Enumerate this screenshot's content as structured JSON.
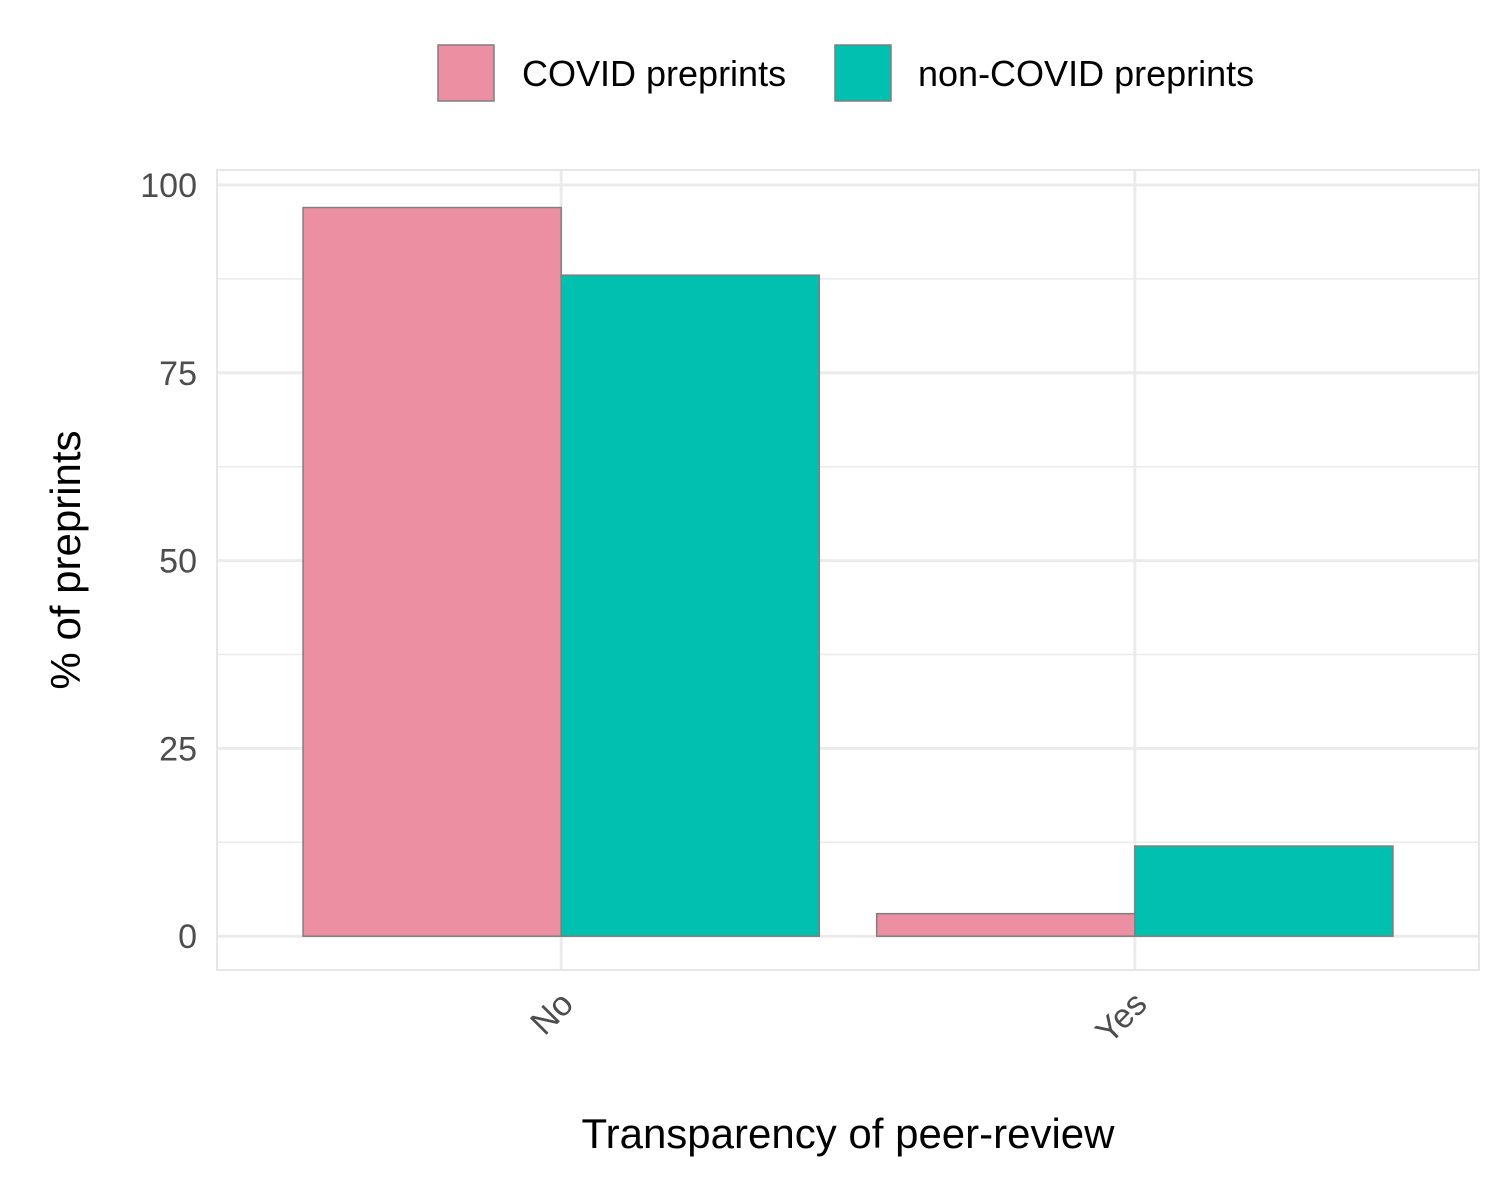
{
  "chart_data": {
    "type": "bar",
    "xlabel": "Transparency of peer-review",
    "ylabel": "% of preprints",
    "categories": [
      "No",
      "Yes"
    ],
    "series": [
      {
        "name": "COVID preprints",
        "values": [
          97,
          3
        ],
        "color": "#EC8FA2"
      },
      {
        "name": "non-COVID preprints",
        "values": [
          88,
          12
        ],
        "color": "#00C0B0"
      }
    ],
    "ylim": [
      -4.5,
      102
    ],
    "yticks": [
      0,
      25,
      50,
      75,
      100
    ],
    "grid": true,
    "legend_position": "top",
    "bar_outline_color": "#7f7f7f",
    "grid_color": "#ebebeb"
  }
}
